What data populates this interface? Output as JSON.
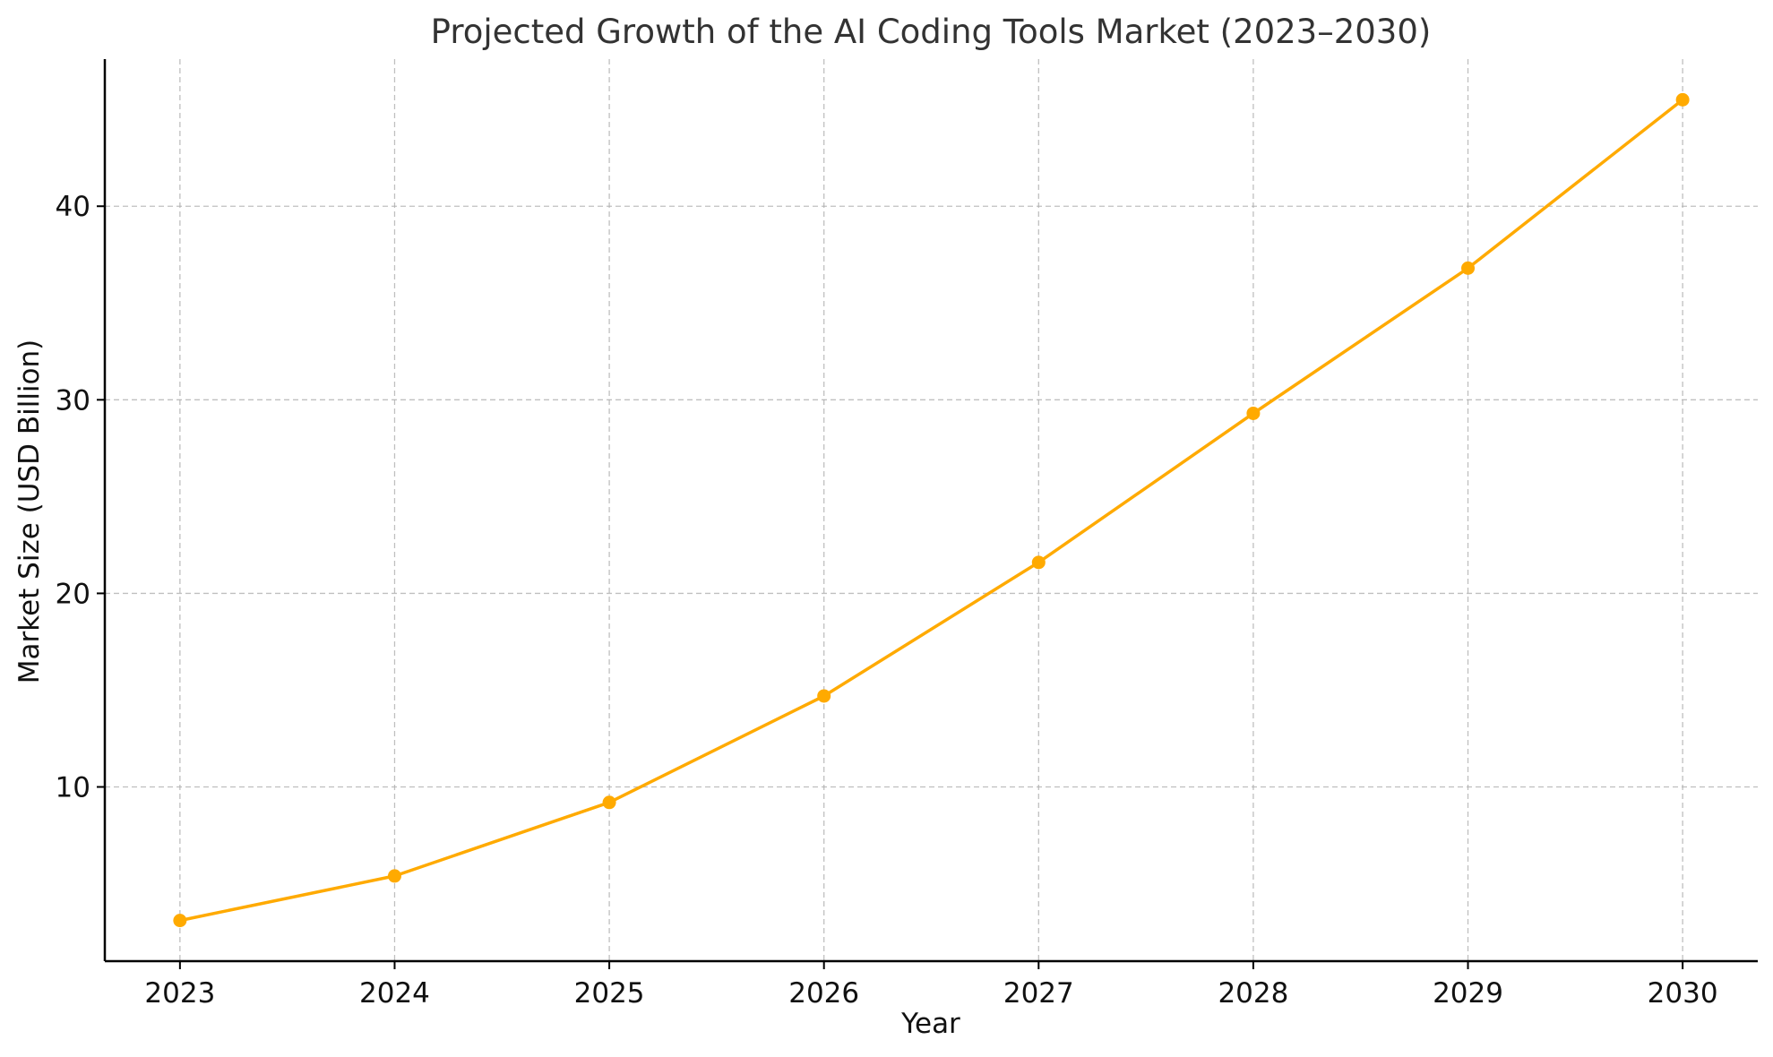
{
  "chart_data": {
    "type": "line",
    "title": "Projected Growth of the AI Coding Tools Market (2023–2030)",
    "xlabel": "Year",
    "ylabel": "Market Size (USD Billion)",
    "x_ticks": [
      "2023",
      "2024",
      "2025",
      "2026",
      "2027",
      "2028",
      "2029",
      "2030"
    ],
    "y_ticks": [
      "10",
      "20",
      "30",
      "40"
    ],
    "y_tick_values": [
      10,
      20,
      30,
      40
    ],
    "xlim": [
      2022.65,
      2030.35
    ],
    "ylim": [
      1,
      47.6
    ],
    "grid": true,
    "series": [
      {
        "color": "#FFAA00",
        "x": [
          2023,
          2024,
          2025,
          2026,
          2027,
          2028,
          2029,
          2030
        ],
        "values": [
          3.1,
          5.4,
          9.2,
          14.7,
          21.6,
          29.3,
          36.8,
          45.5
        ]
      }
    ]
  }
}
